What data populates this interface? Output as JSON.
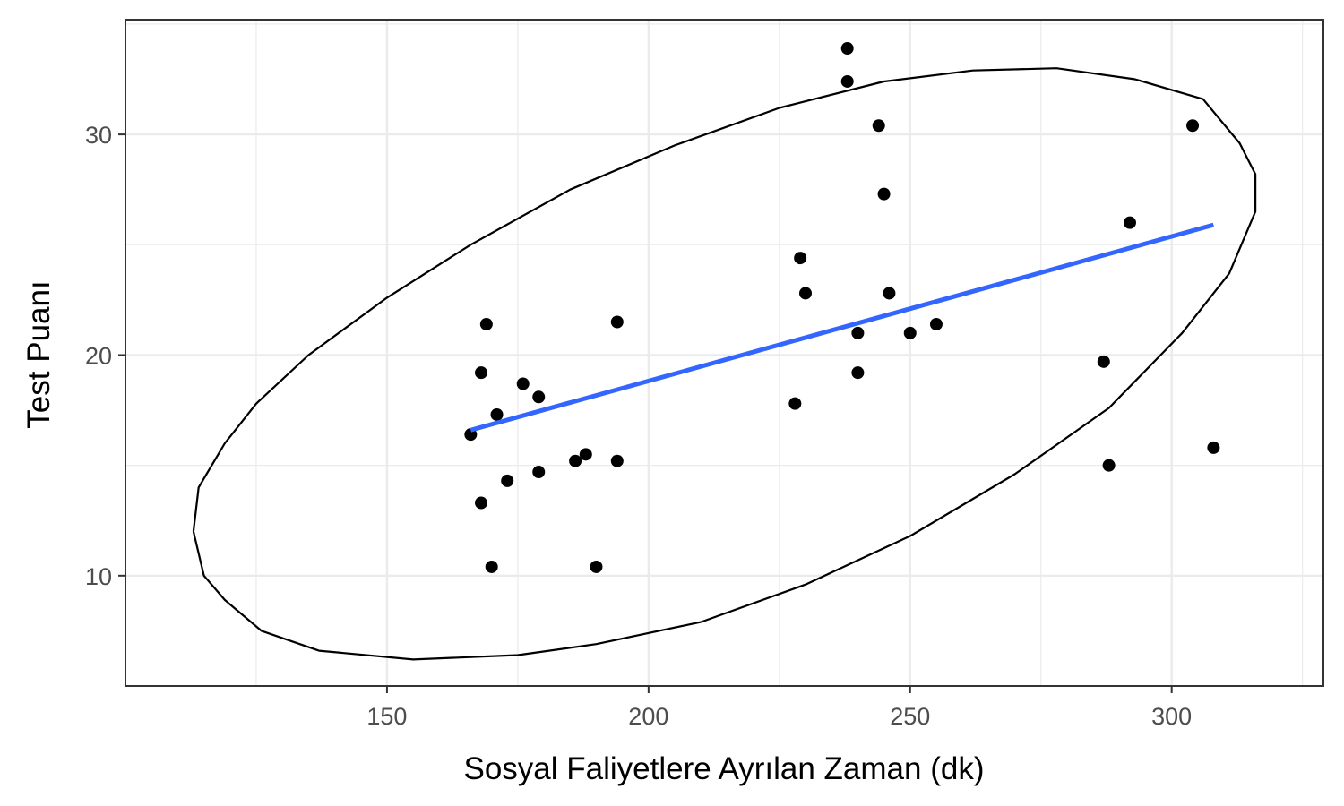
{
  "chart_data": {
    "type": "scatter",
    "title": "",
    "xlabel": "Sosyal Faliyetlere Ayrılan Zaman (dk)",
    "ylabel": "Test Puanı",
    "xlim": [
      100,
      329
    ],
    "ylim": [
      5,
      35.2
    ],
    "x_ticks": [
      150,
      200,
      250,
      300
    ],
    "y_ticks": [
      10,
      20,
      30
    ],
    "grid": true,
    "legend": "none",
    "points": [
      {
        "x": 166,
        "y": 16.4
      },
      {
        "x": 168,
        "y": 19.2
      },
      {
        "x": 168,
        "y": 13.3
      },
      {
        "x": 169,
        "y": 21.4
      },
      {
        "x": 170,
        "y": 10.4
      },
      {
        "x": 171,
        "y": 17.3
      },
      {
        "x": 173,
        "y": 14.3
      },
      {
        "x": 176,
        "y": 18.7
      },
      {
        "x": 179,
        "y": 18.1
      },
      {
        "x": 179,
        "y": 14.7
      },
      {
        "x": 186,
        "y": 15.2
      },
      {
        "x": 188,
        "y": 15.5
      },
      {
        "x": 190,
        "y": 10.4
      },
      {
        "x": 194,
        "y": 21.5
      },
      {
        "x": 194,
        "y": 15.2
      },
      {
        "x": 228,
        "y": 17.8
      },
      {
        "x": 229,
        "y": 24.4
      },
      {
        "x": 230,
        "y": 22.8
      },
      {
        "x": 238,
        "y": 33.9
      },
      {
        "x": 238,
        "y": 32.4
      },
      {
        "x": 240,
        "y": 21.0
      },
      {
        "x": 240,
        "y": 19.2
      },
      {
        "x": 244,
        "y": 30.4
      },
      {
        "x": 245,
        "y": 27.3
      },
      {
        "x": 246,
        "y": 22.8
      },
      {
        "x": 250,
        "y": 21.0
      },
      {
        "x": 255,
        "y": 21.4
      },
      {
        "x": 287,
        "y": 19.7
      },
      {
        "x": 288,
        "y": 15.0
      },
      {
        "x": 292,
        "y": 26.0
      },
      {
        "x": 304,
        "y": 30.4
      },
      {
        "x": 308,
        "y": 15.8
      }
    ],
    "fit_line": {
      "color": "#3366ff",
      "x": [
        166,
        308
      ],
      "y": [
        16.6,
        25.9
      ]
    },
    "ellipse": {
      "color": "#000000",
      "points": [
        [
          113,
          12.0
        ],
        [
          115,
          10.0
        ],
        [
          119,
          8.9
        ],
        [
          126,
          7.5
        ],
        [
          137,
          6.6
        ],
        [
          155,
          6.2
        ],
        [
          175,
          6.4
        ],
        [
          190,
          6.9
        ],
        [
          210,
          7.9
        ],
        [
          230,
          9.6
        ],
        [
          250,
          11.8
        ],
        [
          270,
          14.6
        ],
        [
          288,
          17.6
        ],
        [
          302,
          21.0
        ],
        [
          311,
          23.7
        ],
        [
          316,
          26.5
        ],
        [
          316,
          28.2
        ],
        [
          313,
          29.6
        ],
        [
          306,
          31.6
        ],
        [
          293,
          32.5
        ],
        [
          278,
          33.0
        ],
        [
          262,
          32.9
        ],
        [
          245,
          32.4
        ],
        [
          225,
          31.2
        ],
        [
          205,
          29.5
        ],
        [
          185,
          27.5
        ],
        [
          166,
          25.0
        ],
        [
          150,
          22.6
        ],
        [
          135,
          20.0
        ],
        [
          125,
          17.8
        ],
        [
          119,
          16.0
        ],
        [
          114,
          14.0
        ],
        [
          113,
          12.0
        ]
      ]
    },
    "colors": {
      "points": "#000000",
      "grid": "#ebebeb",
      "panel_border": "#333333",
      "tick_text": "#4d4d4d"
    }
  }
}
